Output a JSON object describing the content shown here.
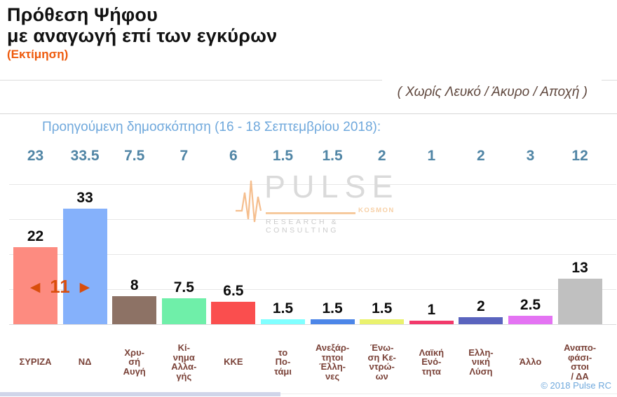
{
  "header": {
    "title_line1": "Πρόθεση Ψήφου",
    "title_line2": "με αναγωγή επί των εγκύρων",
    "estimate_label": "(Εκτίμηση)",
    "note": "( Χωρίς Λευκό / Άκυρο / Αποχή )",
    "previous_poll_label": "Προηγούμενη δημοσκόπηση (16 - 18 Σεπτεμβρίου 2018):"
  },
  "gap_annotation": {
    "left_arrow": "◄",
    "value": "11",
    "right_arrow": "►",
    "color": "#D94E0C"
  },
  "watermark": {
    "name": "PULSE",
    "sub": "KOSMON",
    "tagline": "RESEARCH & CONSULTING",
    "ecg_icon_color": "#F2AE72"
  },
  "footer": {
    "copyright": "© 2018 Pulse RC"
  },
  "chart_data": {
    "type": "bar",
    "title": "Πρόθεση Ψήφου με αναγωγή επί των εγκύρων (Εκτίμηση)",
    "subtitle": "( Χωρίς Λευκό / Άκυρο / Αποχή )",
    "ylim": [
      0,
      40
    ],
    "gridline_step": 10,
    "grid": true,
    "legend_position": "none",
    "categories": [
      "ΣΥΡΙΖΑ",
      "ΝΔ",
      "Χρυσή Αυγή",
      "Κίνημα Αλλαγής",
      "ΚΚΕ",
      "το Ποτάμι",
      "Ανεξάρτητοι Έλληνες",
      "Ένωση Κεντρώων",
      "Λαϊκή Ενότητα",
      "Ελληνική Λύση",
      "Άλλο",
      "Αναποφάσιστοι / ΔΑ"
    ],
    "category_display_lines": [
      [
        "ΣΥΡΙΖΑ"
      ],
      [
        "ΝΔ"
      ],
      [
        "Χρυ-",
        "σή",
        "Αυγή"
      ],
      [
        "Κί-",
        "νημα",
        "Αλλα-",
        "γής"
      ],
      [
        "ΚΚΕ"
      ],
      [
        "το",
        "Πο-",
        "τάμι"
      ],
      [
        "Ανεξάρ-",
        "τητοι",
        "Έλλη-",
        "νες"
      ],
      [
        "Ένω-",
        "ση Κε-",
        "ντρώ-",
        "ων"
      ],
      [
        "Λαϊκή",
        "Ενό-",
        "τητα"
      ],
      [
        "Ελλη-",
        "νική",
        "Λύση"
      ],
      [
        "Άλλο"
      ],
      [
        "Αναπο-",
        "φάσι-",
        "στοι",
        "/ ΔΑ"
      ]
    ],
    "series": [
      {
        "name": "Εκτίμηση (current)",
        "values": [
          22,
          33,
          8,
          7.5,
          6.5,
          1.5,
          1.5,
          1.5,
          1,
          2,
          2.5,
          13
        ]
      },
      {
        "name": "Προηγούμενη δημοσκόπηση (16 - 18 Σεπτεμβρίου 2018)",
        "values": [
          23,
          33.5,
          7.5,
          7,
          6,
          1.5,
          1.5,
          2,
          1,
          2,
          3,
          12
        ]
      }
    ],
    "bar_colors": [
      "#FD8B80",
      "#85B1FB",
      "#8D7265",
      "#6FEFA9",
      "#FA4E4E",
      "#80FFFF",
      "#4C86E8",
      "#EAF26E",
      "#F2396B",
      "#5A64BE",
      "#E473F3",
      "#C0C0C0"
    ],
    "syriza_nd_gap": 11
  }
}
